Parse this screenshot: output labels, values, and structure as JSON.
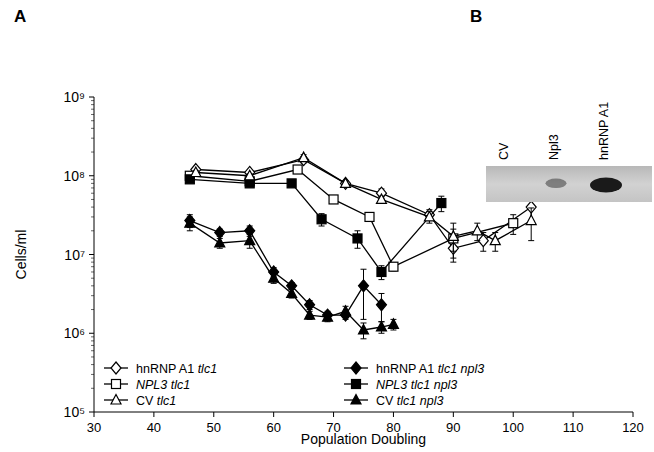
{
  "panel_labels": [
    "A",
    "B"
  ],
  "chart_data": {
    "type": "line",
    "x_label": "Population Doubling",
    "y_label": "Cells/ml",
    "log": "y",
    "grid": false,
    "legend": "lower left",
    "xlim": [
      30,
      120
    ],
    "xticks": [
      30,
      40,
      50,
      60,
      70,
      80,
      90,
      100,
      110,
      120
    ],
    "ylim": [
      100000,
      1000000000
    ],
    "yticks": [
      {
        "value": 100000,
        "label": "10⁵"
      },
      {
        "value": 1000000,
        "label": "10⁶"
      },
      {
        "value": 10000000,
        "label": "10⁷"
      },
      {
        "value": 100000000,
        "label": "10⁸"
      },
      {
        "value": 1000000000,
        "label": "10⁹"
      }
    ],
    "series": [
      {
        "name": "hnRNP A1 tlc1",
        "color": "#000000",
        "marker": "open-diamond",
        "x": [
          47,
          56,
          65,
          72,
          78,
          86,
          90,
          95,
          103
        ],
        "values": [
          120000000,
          110000000,
          160000000,
          80000000,
          60000000,
          32000000,
          12000000,
          15000000,
          40000000
        ],
        "errors": [
          8000000,
          6000000,
          15000000,
          6000000,
          8000000,
          5000000,
          4000000,
          4000000,
          13000000
        ]
      },
      {
        "name": "hnRNP A1 tlc1 npl3",
        "color": "#000000",
        "marker": "diamond",
        "x": [
          46,
          51,
          56,
          60,
          63,
          66,
          69,
          72,
          75,
          78
        ],
        "values": [
          27000000,
          19000000,
          20000000,
          6000000,
          4000000,
          2300000,
          1700000,
          1700000,
          4000000,
          2300000
        ],
        "errors": [
          5000000,
          2000000,
          3000000,
          800000,
          400000,
          300000,
          200000,
          200000,
          2500000,
          900000
        ]
      },
      {
        "name": "NPL3 tlc1",
        "color": "#000000",
        "marker": "open-square",
        "x": [
          46,
          56,
          64,
          70,
          76,
          80,
          90,
          100
        ],
        "values": [
          100000000,
          85000000,
          120000000,
          50000000,
          30000000,
          7000000,
          16000000,
          25000000
        ],
        "errors": [
          6000000,
          5000000,
          10000000,
          5000000,
          3000000,
          800000,
          5000000,
          7000000
        ]
      },
      {
        "name": "NPL3 tlc1 npl3",
        "color": "#000000",
        "marker": "square",
        "x": [
          46,
          56,
          63,
          68,
          74,
          78,
          88
        ],
        "values": [
          90000000,
          80000000,
          80000000,
          28000000,
          16000000,
          6000000,
          45000000
        ],
        "errors": [
          6000000,
          5000000,
          6000000,
          5000000,
          4000000,
          1200000,
          10000000
        ]
      },
      {
        "name": "CV tlc1",
        "color": "#000000",
        "marker": "open-triangle",
        "x": [
          47,
          56,
          65,
          72,
          78,
          86,
          90,
          94,
          97,
          103
        ],
        "values": [
          110000000,
          100000000,
          170000000,
          80000000,
          50000000,
          30000000,
          17000000,
          20000000,
          15000000,
          27000000
        ],
        "errors": [
          7000000,
          6000000,
          15000000,
          6000000,
          5000000,
          5000000,
          8000000,
          5000000,
          4000000,
          12000000
        ]
      },
      {
        "name": "CV tlc1 npl3",
        "color": "#000000",
        "marker": "triangle",
        "x": [
          46,
          51,
          56,
          60,
          63,
          66,
          69,
          72,
          75,
          78,
          80
        ],
        "values": [
          25000000,
          14000000,
          15000000,
          5000000,
          3200000,
          1700000,
          1600000,
          1900000,
          1100000,
          1200000,
          1300000
        ],
        "errors": [
          5000000,
          2000000,
          3000000,
          700000,
          400000,
          200000,
          200000,
          300000,
          250000,
          200000,
          200000
        ]
      }
    ]
  },
  "blot": {
    "lanes": [
      "CV",
      "Npl3",
      "hnRNP A1"
    ],
    "band_intensity": [
      0,
      0.45,
      1
    ]
  }
}
